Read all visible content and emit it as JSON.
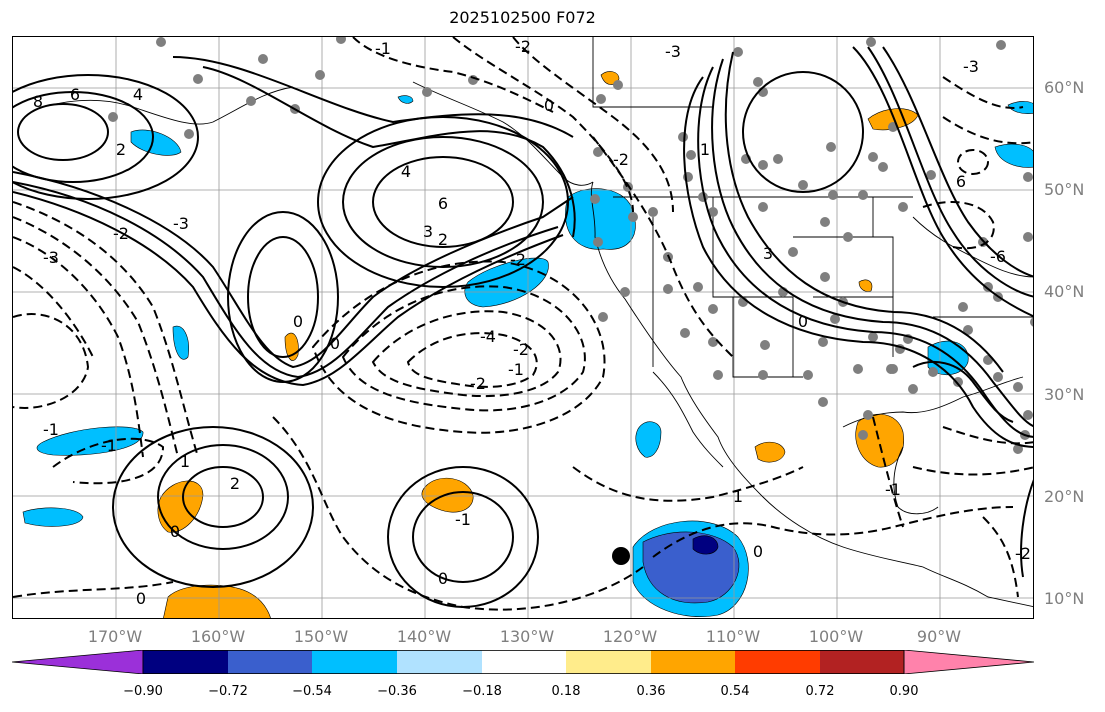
{
  "title": "2025102500 F072",
  "lat_labels": [
    "60°N",
    "50°N",
    "40°N",
    "30°N",
    "20°N",
    "10°N"
  ],
  "lon_labels": [
    "170°W",
    "160°W",
    "150°W",
    "140°W",
    "130°W",
    "120°W",
    "110°W",
    "100°W",
    "90°W"
  ],
  "colorbar": {
    "colors": [
      "#9b30d9",
      "#000080",
      "#3a5fcd",
      "#00bfff",
      "#b0e2ff",
      "#ffffff",
      "#ffec8b",
      "#ffa500",
      "#ff3c00",
      "#b22222",
      "#ff82ab"
    ],
    "ticks": [
      "−0.90",
      "−0.72",
      "−0.54",
      "−0.36",
      "−0.18",
      "0.18",
      "0.36",
      "0.54",
      "0.72",
      "0.90"
    ]
  },
  "contour_labels": [
    "8",
    "6",
    "4",
    "2",
    "-1",
    "-2",
    "0",
    "-3",
    "-3",
    "-3",
    "-2",
    "4",
    "6",
    "3",
    "2",
    "-2",
    "-4",
    "-2",
    "-1",
    "-2",
    "-1",
    "-1",
    "2",
    "1",
    "0",
    "0",
    "0",
    "-1",
    "0",
    "1",
    "0",
    "-1",
    "6",
    "-3",
    "-6",
    "3",
    "0",
    "-2",
    "1",
    "0",
    "-2"
  ]
}
